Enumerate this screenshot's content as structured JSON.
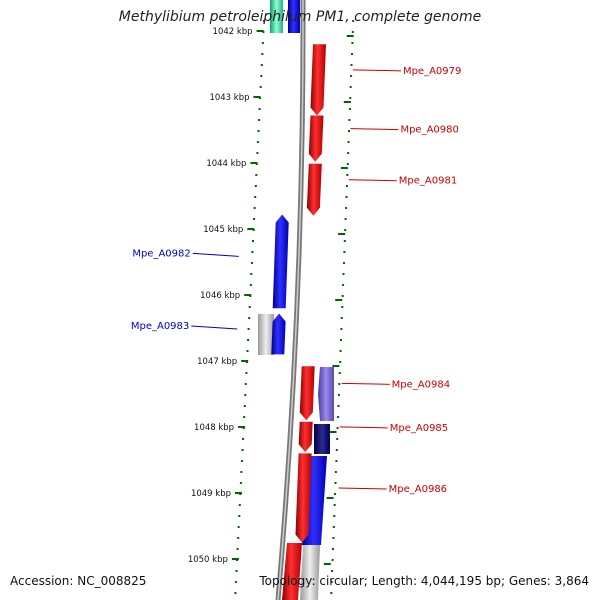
{
  "title": "Methylibium petroleiphilum PM1, complete genome",
  "footer": {
    "accession": "Accession: NC_008825",
    "stats": "Topology: circular; Length: 4,044,195 bp; Genes: 3,864"
  },
  "colors": {
    "forward": "#ee0000",
    "reverse": "#0000ee",
    "backbone": "#888888",
    "tick": "#006600",
    "label_forward": "#cc0000",
    "label_reverse": "#0000cc"
  },
  "scale": {
    "unit": "kbp",
    "ticks": [
      {
        "value": 1042,
        "label": "1042 kbp"
      },
      {
        "value": 1043,
        "label": "1043 kbp"
      },
      {
        "value": 1044,
        "label": "1044 kbp"
      },
      {
        "value": 1045,
        "label": "1045 kbp"
      },
      {
        "value": 1046,
        "label": "1046 kbp"
      },
      {
        "value": 1047,
        "label": "1047 kbp"
      },
      {
        "value": 1048,
        "label": "1048 kbp"
      },
      {
        "value": 1049,
        "label": "1049 kbp"
      },
      {
        "value": 1050,
        "label": "1050 kbp"
      }
    ]
  },
  "genes": [
    {
      "name": "Mpe_A0979",
      "strand": "forward",
      "start_kbp": 1042.2,
      "end_kbp": 1043.28
    },
    {
      "name": "Mpe_A0980",
      "strand": "forward",
      "start_kbp": 1043.28,
      "end_kbp": 1043.98
    },
    {
      "name": "Mpe_A0981",
      "strand": "forward",
      "start_kbp": 1044.01,
      "end_kbp": 1044.8
    },
    {
      "name": "Mpe_A0982",
      "strand": "reverse",
      "start_kbp": 1044.78,
      "end_kbp": 1046.2
    },
    {
      "name": "Mpe_A0983",
      "strand": "reverse",
      "start_kbp": 1046.28,
      "end_kbp": 1046.9
    },
    {
      "name": "Mpe_A0984",
      "strand": "forward",
      "start_kbp": 1047.08,
      "end_kbp": 1047.9
    },
    {
      "name": "Mpe_A0985",
      "strand": "forward",
      "start_kbp": 1047.92,
      "end_kbp": 1048.38
    },
    {
      "name": "Mpe_A0986",
      "strand": "forward",
      "start_kbp": 1048.4,
      "end_kbp": 1049.75
    }
  ],
  "labels": [
    {
      "gene": "Mpe_A0979",
      "text": "Mpe_A0979",
      "side": "right"
    },
    {
      "gene": "Mpe_A0980",
      "text": "Mpe_A0980",
      "side": "right"
    },
    {
      "gene": "Mpe_A0981",
      "text": "Mpe_A0981",
      "side": "right"
    },
    {
      "gene": "Mpe_A0982",
      "text": "Mpe_A0982",
      "side": "left"
    },
    {
      "gene": "Mpe_A0983",
      "text": "Mpe_A0983",
      "side": "left"
    },
    {
      "gene": "Mpe_A0984",
      "text": "Mpe_A0984",
      "side": "right"
    },
    {
      "gene": "Mpe_A0985",
      "text": "Mpe_A0985",
      "side": "right"
    },
    {
      "gene": "Mpe_A0986",
      "text": "Mpe_A0986",
      "side": "right"
    }
  ]
}
